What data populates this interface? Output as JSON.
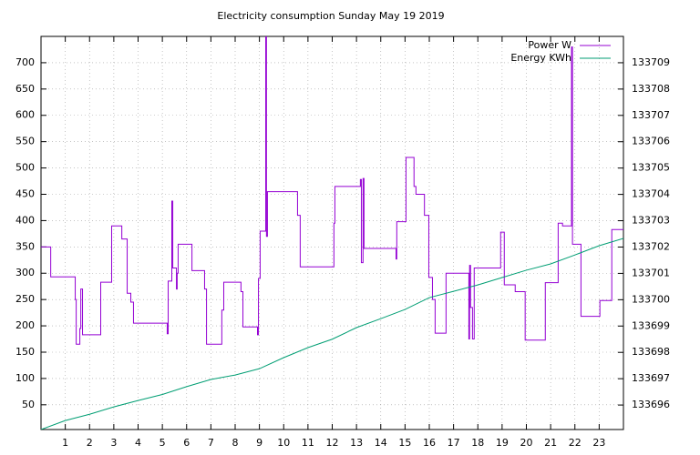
{
  "chart_data": {
    "type": "line",
    "title": "Electricity consumption Sunday May 19 2019",
    "xlim": [
      0,
      24
    ],
    "xticks": [
      1,
      2,
      3,
      4,
      5,
      6,
      7,
      8,
      9,
      10,
      11,
      12,
      13,
      14,
      15,
      16,
      17,
      18,
      19,
      20,
      21,
      22,
      23
    ],
    "ylim": [
      3,
      750
    ],
    "yticks": [
      50,
      100,
      150,
      200,
      250,
      300,
      350,
      400,
      450,
      500,
      550,
      600,
      650,
      700
    ],
    "y2lim": [
      133695.07,
      133710.0
    ],
    "y2ticks": [
      133696,
      133697,
      133698,
      133699,
      133700,
      133701,
      133702,
      133703,
      133704,
      133705,
      133706,
      133707,
      133708,
      133709
    ],
    "grid": true,
    "legend": "top-right",
    "series": [
      {
        "name": "Power W",
        "color": "#9400d3",
        "x": [
          0,
          0.4,
          0.4,
          1.41,
          1.41,
          1.45,
          1.45,
          1.6,
          1.6,
          1.64,
          1.64,
          1.71,
          1.71,
          2.46,
          2.46,
          2.91,
          2.91,
          3.33,
          3.33,
          3.55,
          3.55,
          3.7,
          3.7,
          3.81,
          3.81,
          5.2,
          5.2,
          5.24,
          5.24,
          5.39,
          5.39,
          5.43,
          5.43,
          5.58,
          5.58,
          5.61,
          5.61,
          5.65,
          5.65,
          6.22,
          6.22,
          6.74,
          6.74,
          6.82,
          6.82,
          7.45,
          7.45,
          7.53,
          7.53,
          8.24,
          8.24,
          8.32,
          8.32,
          8.92,
          8.92,
          8.96,
          8.96,
          9.03,
          9.03,
          9.26,
          9.26,
          9.29,
          9.29,
          9.33,
          9.33,
          10.57,
          10.57,
          10.68,
          10.68,
          12.07,
          12.07,
          12.11,
          12.11,
          13.16,
          13.16,
          13.2,
          13.2,
          13.27,
          13.27,
          13.31,
          13.31,
          14.63,
          14.63,
          14.66,
          14.66,
          15.04,
          15.04,
          15.37,
          15.37,
          15.45,
          15.45,
          15.8,
          15.8,
          15.98,
          15.98,
          16.13,
          16.13,
          16.24,
          16.24,
          16.69,
          16.69,
          17.63,
          17.63,
          17.66,
          17.66,
          17.7,
          17.7,
          17.78,
          17.78,
          17.85,
          17.85,
          18.94,
          18.94,
          19.09,
          19.09,
          19.54,
          19.54,
          19.95,
          19.95,
          20.78,
          20.78,
          21.31,
          21.31,
          21.49,
          21.49,
          21.86,
          21.86,
          21.9,
          21.9,
          22.25,
          22.25,
          23.03,
          23.03,
          23.52,
          23.52,
          24
        ],
        "values": [
          350,
          350,
          293,
          293,
          250,
          250,
          165,
          165,
          195,
          195,
          270,
          270,
          183,
          183,
          283,
          283,
          390,
          390,
          365,
          365,
          262,
          262,
          245,
          245,
          205,
          205,
          185,
          185,
          285,
          285,
          437,
          437,
          310,
          310,
          270,
          270,
          300,
          300,
          355,
          355,
          305,
          305,
          270,
          270,
          165,
          165,
          230,
          230,
          283,
          283,
          265,
          265,
          198,
          198,
          183,
          183,
          290,
          290,
          380,
          380,
          750,
          750,
          370,
          370,
          455,
          455,
          410,
          410,
          312,
          312,
          395,
          395,
          465,
          465,
          478,
          478,
          320,
          320,
          480,
          480,
          347,
          347,
          327,
          327,
          398,
          398,
          520,
          520,
          465,
          465,
          450,
          450,
          410,
          410,
          292,
          292,
          250,
          250,
          186,
          186,
          300,
          300,
          175,
          175,
          315,
          315,
          235,
          235,
          175,
          175,
          310,
          310,
          378,
          378,
          278,
          278,
          265,
          265,
          173,
          173,
          282,
          282,
          395,
          395,
          390,
          390,
          730,
          730,
          355,
          355,
          218,
          218,
          248,
          248,
          383,
          383
        ]
      },
      {
        "name": "Energy KWh",
        "color": "#009e73",
        "axis": "y2",
        "x": [
          0,
          1,
          2,
          3,
          4,
          5,
          6,
          7,
          8,
          9,
          10,
          11,
          12,
          13,
          14,
          15,
          16,
          17,
          18,
          19,
          20,
          21,
          22,
          23,
          24
        ],
        "values": [
          133695.07,
          133695.41,
          133695.65,
          133695.93,
          133696.17,
          133696.4,
          133696.7,
          133696.97,
          133697.14,
          133697.38,
          133697.8,
          133698.18,
          133698.5,
          133698.94,
          133699.28,
          133699.63,
          133700.08,
          133700.32,
          133700.56,
          133700.84,
          133701.12,
          133701.36,
          133701.7,
          133702.05,
          133702.33
        ]
      }
    ]
  }
}
